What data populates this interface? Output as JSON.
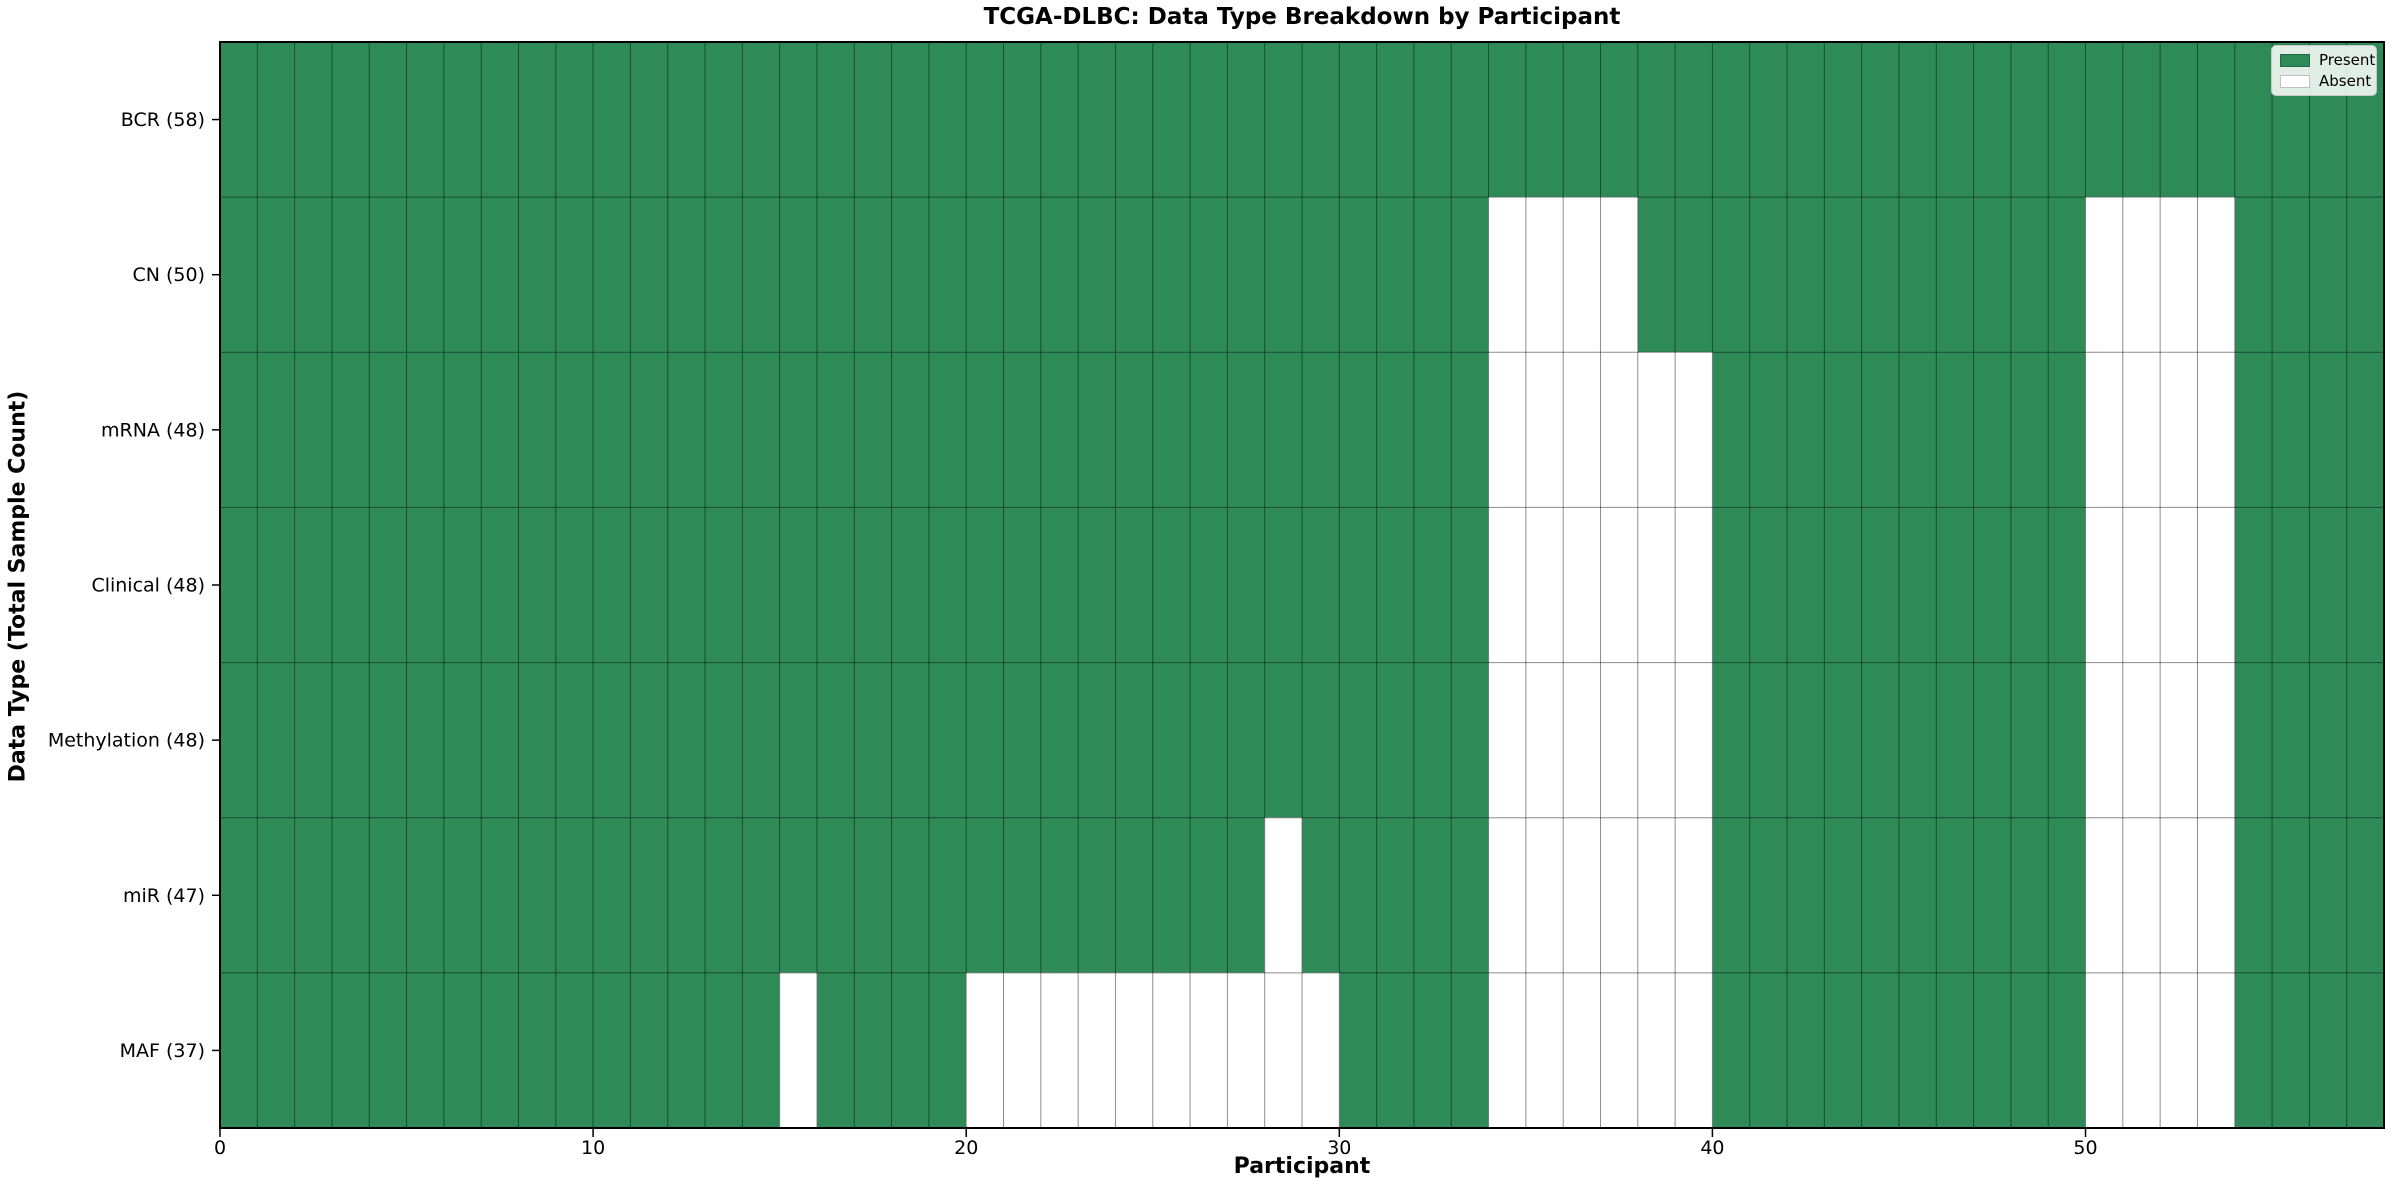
{
  "chart_data": {
    "type": "heatmap",
    "title": "TCGA-DLBC: Data Type Breakdown by Participant",
    "xlabel": "Participant",
    "ylabel": "Data Type (Total Sample Count)",
    "n_participants": 58,
    "x_ticks": [
      0,
      10,
      20,
      30,
      40,
      50
    ],
    "present_color": "#2e8b57",
    "absent_color": "#ffffff",
    "grid_color": "rgba(0,0,0,0.45)",
    "spine_color": "#000000",
    "legend_position": "upper right",
    "legend": [
      {
        "label": "Present",
        "color": "#2e8b57"
      },
      {
        "label": "Absent",
        "color": "#ffffff"
      }
    ],
    "rows": [
      {
        "label": "BCR (58)",
        "name": "BCR",
        "count": 58,
        "absent": []
      },
      {
        "label": "CN (50)",
        "name": "CN",
        "count": 50,
        "absent": [
          34,
          35,
          36,
          37,
          50,
          51,
          52,
          53
        ]
      },
      {
        "label": "mRNA (48)",
        "name": "mRNA",
        "count": 48,
        "absent": [
          34,
          35,
          36,
          37,
          38,
          39,
          50,
          51,
          52,
          53
        ]
      },
      {
        "label": "Clinical (48)",
        "name": "Clinical",
        "count": 48,
        "absent": [
          34,
          35,
          36,
          37,
          38,
          39,
          50,
          51,
          52,
          53
        ]
      },
      {
        "label": "Methylation (48)",
        "name": "Methylation",
        "count": 48,
        "absent": [
          34,
          35,
          36,
          37,
          38,
          39,
          50,
          51,
          52,
          53
        ]
      },
      {
        "label": "miR (47)",
        "name": "miR",
        "count": 47,
        "absent": [
          28,
          34,
          35,
          36,
          37,
          38,
          39,
          50,
          51,
          52,
          53
        ]
      },
      {
        "label": "MAF (37)",
        "name": "MAF",
        "count": 37,
        "absent": [
          15,
          20,
          21,
          22,
          23,
          24,
          25,
          26,
          27,
          28,
          29,
          34,
          35,
          36,
          37,
          38,
          39,
          50,
          51,
          52,
          53
        ]
      }
    ]
  }
}
